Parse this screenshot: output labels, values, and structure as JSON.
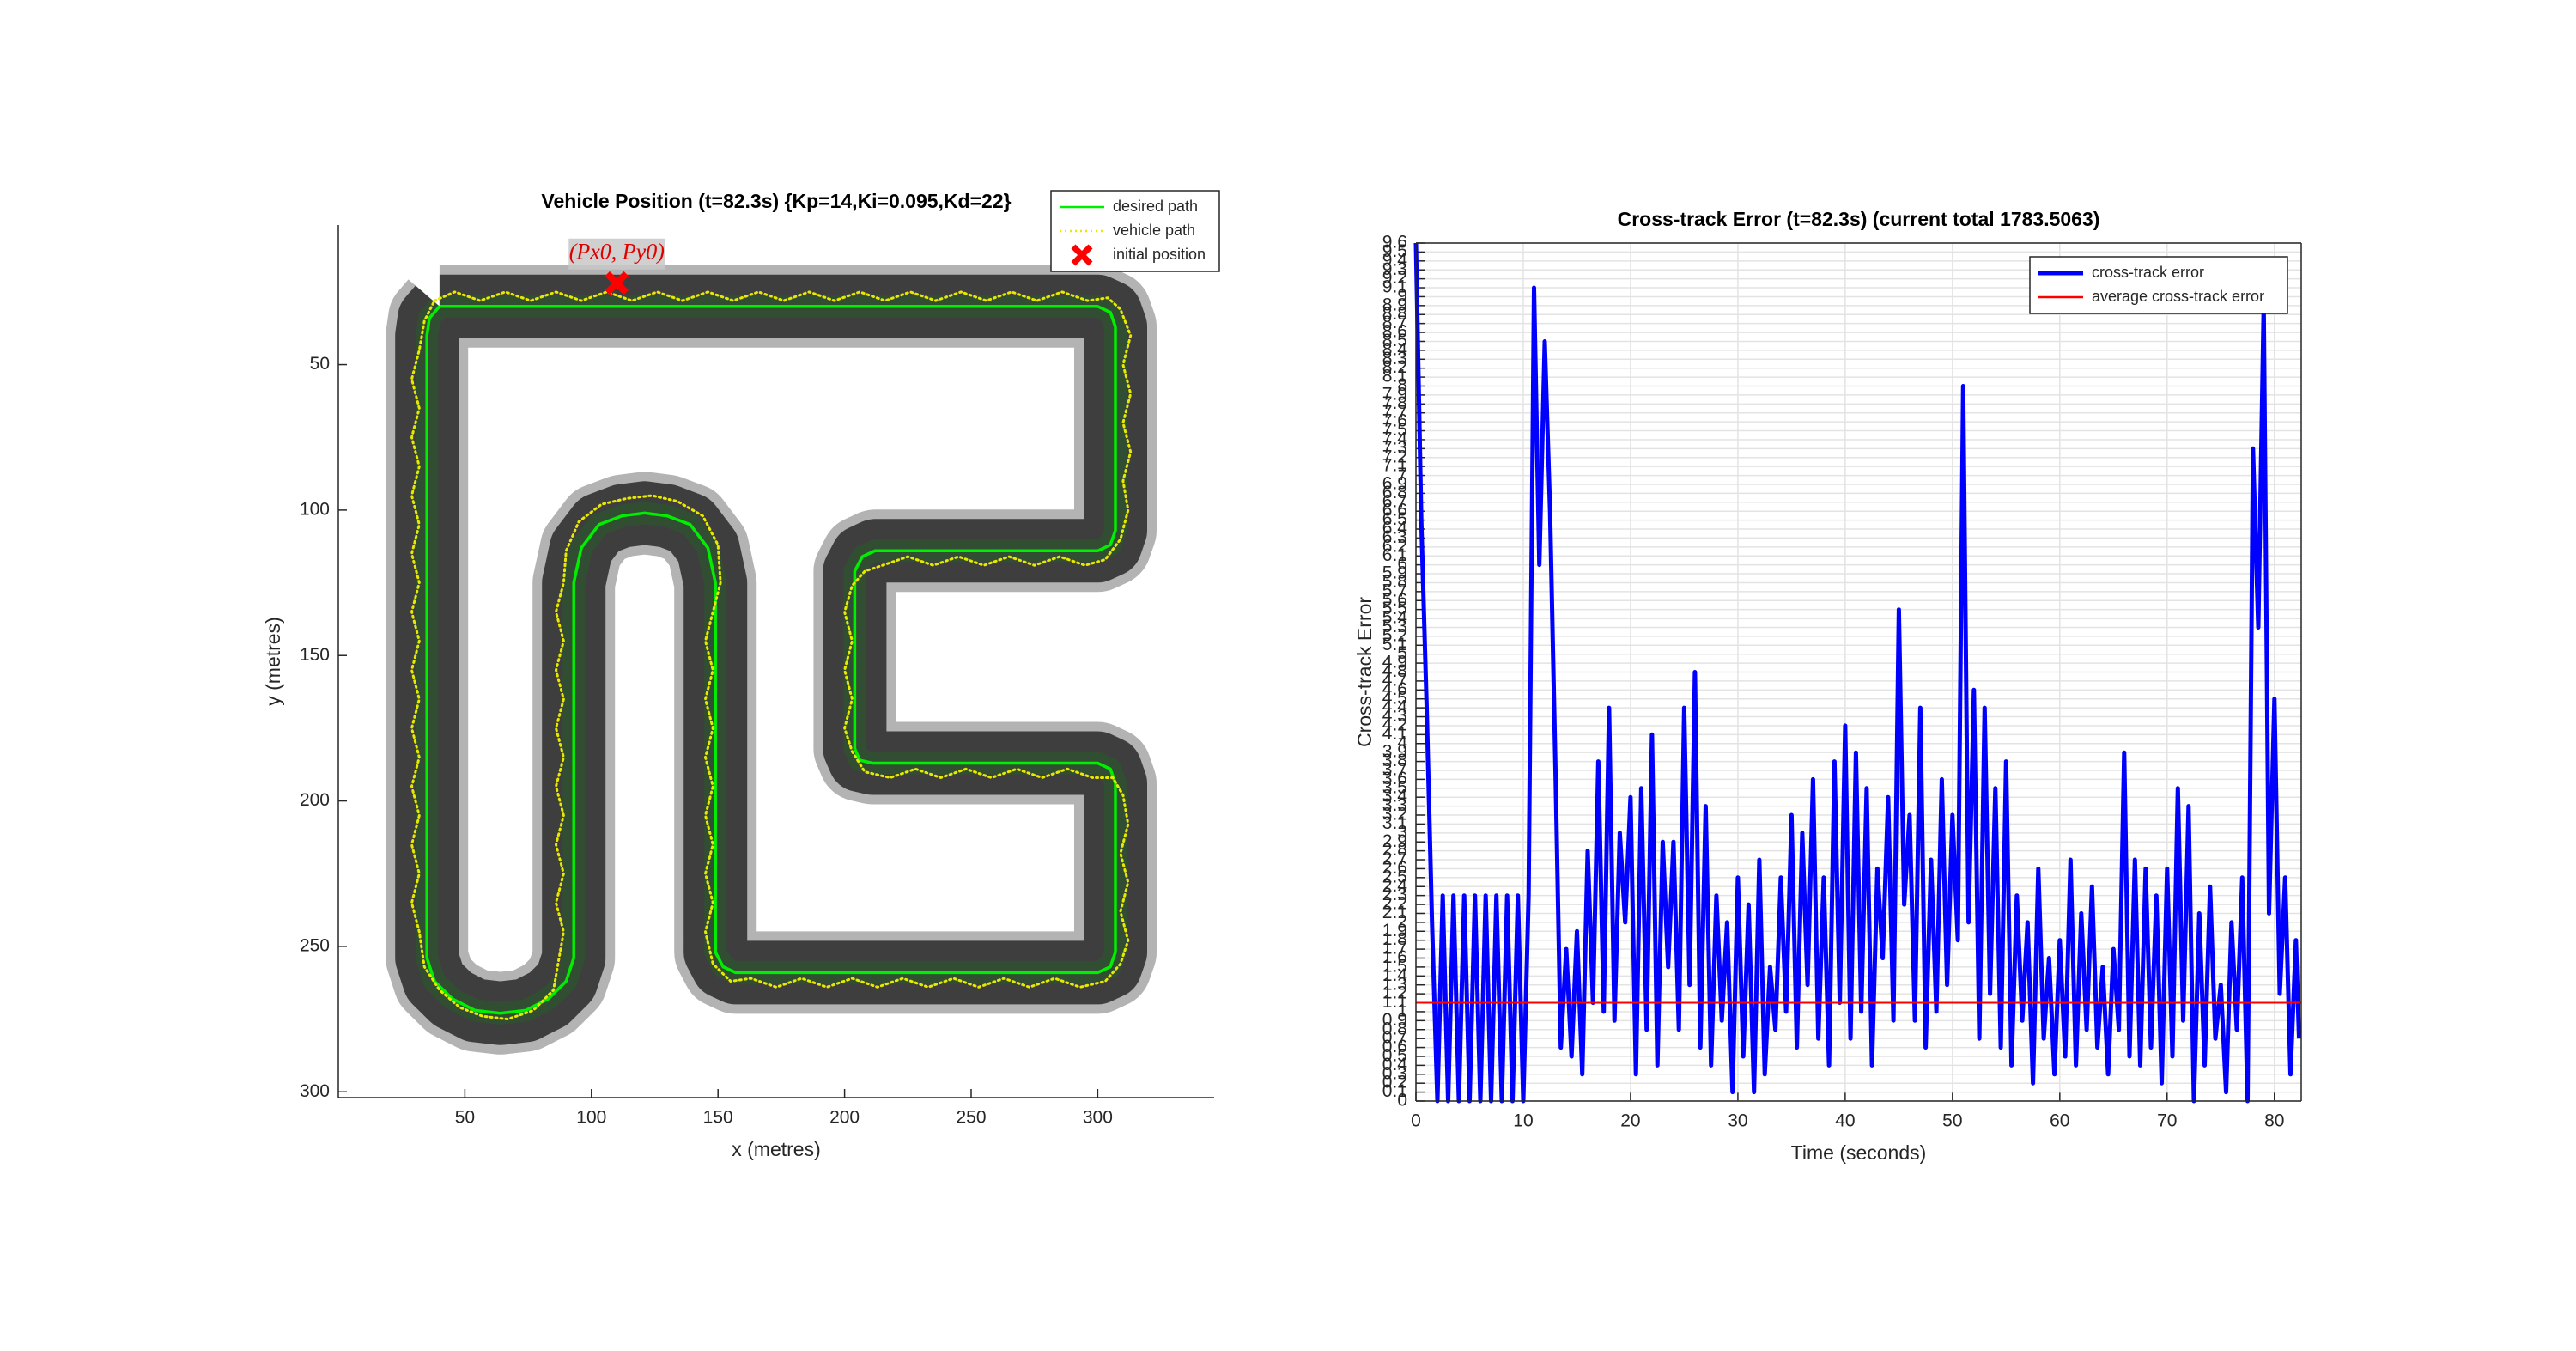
{
  "chart_data": [
    {
      "type": "path",
      "title": "Vehicle Position (t=82.3s) {Kp=14,Ki=0.095,Kd=22}",
      "xlabel": "x (metres)",
      "ylabel": "y (metres)",
      "xlim": [
        0,
        346
      ],
      "ylim": [
        2,
        302
      ],
      "y_reversed": true,
      "box": false,
      "grid": false,
      "xticks": [
        50,
        100,
        150,
        200,
        250,
        300
      ],
      "yticks": [
        50,
        100,
        150,
        200,
        250,
        300
      ],
      "legend": "northeast",
      "annotation": "(Px0, Py0)",
      "series": [
        {
          "name": "desired path",
          "color": "#00ee00",
          "style": "solid",
          "x": [
            40,
            300,
            305,
            307,
            307,
            305,
            300,
            212,
            207,
            204,
            204,
            206,
            211,
            300,
            305,
            307,
            307,
            305,
            300,
            157,
            152,
            149,
            149,
            146,
            139,
            130,
            121,
            112,
            103,
            96,
            93,
            93,
            90,
            83,
            74,
            64,
            54,
            45,
            38,
            35,
            35,
            36,
            40
          ],
          "y": [
            30,
            30,
            32,
            37,
            107,
            112,
            114,
            114,
            116,
            121,
            182,
            186,
            187,
            187,
            189,
            194,
            252,
            257,
            259,
            259,
            257,
            252,
            125,
            113,
            105,
            102,
            101,
            102,
            105,
            113,
            125,
            254,
            262,
            268,
            272,
            273,
            272,
            268,
            262,
            254,
            40,
            34,
            30
          ]
        },
        {
          "name": "vehicle path",
          "color": "#e8e800",
          "style": "dotted",
          "x": [
            38,
            46,
            56,
            66,
            76,
            86,
            96,
            106,
            116,
            126,
            136,
            146,
            156,
            166,
            176,
            186,
            196,
            206,
            216,
            226,
            236,
            246,
            256,
            266,
            276,
            286,
            296,
            304,
            309,
            313,
            310,
            313,
            310,
            313,
            310,
            312,
            309,
            303,
            295,
            285,
            275,
            265,
            255,
            245,
            235,
            225,
            215,
            208,
            203,
            200,
            203,
            200,
            203,
            200,
            203,
            208,
            218,
            228,
            238,
            248,
            258,
            268,
            278,
            288,
            298,
            306,
            310,
            312,
            309,
            312,
            309,
            312,
            309,
            303,
            293,
            283,
            273,
            263,
            253,
            243,
            233,
            223,
            213,
            203,
            193,
            183,
            173,
            163,
            155,
            148,
            145,
            148,
            145,
            148,
            145,
            148,
            145,
            148,
            145,
            148,
            145,
            148,
            151,
            150,
            144,
            134,
            124,
            114,
            104,
            95,
            90,
            89,
            86,
            89,
            86,
            89,
            86,
            89,
            86,
            89,
            86,
            89,
            86,
            89,
            87,
            85,
            77,
            67,
            57,
            48,
            40,
            34,
            32,
            29,
            32,
            29,
            32,
            29,
            32,
            29,
            32,
            29,
            32,
            29,
            32,
            29,
            32,
            29,
            32,
            29,
            32,
            29,
            32,
            34,
            38
          ],
          "y": [
            28,
            25,
            28,
            25,
            28,
            25,
            28,
            25,
            28,
            25,
            28,
            25,
            28,
            25,
            28,
            25,
            28,
            25,
            28,
            25,
            28,
            25,
            28,
            25,
            28,
            25,
            28,
            27,
            31,
            40,
            50,
            60,
            70,
            80,
            90,
            100,
            110,
            117,
            119,
            116,
            119,
            116,
            119,
            116,
            119,
            116,
            119,
            121,
            126,
            135,
            145,
            155,
            165,
            175,
            183,
            190,
            192,
            189,
            192,
            189,
            192,
            189,
            192,
            189,
            192,
            192,
            198,
            208,
            218,
            228,
            238,
            248,
            256,
            262,
            264,
            261,
            264,
            261,
            264,
            261,
            264,
            261,
            264,
            261,
            264,
            261,
            264,
            261,
            262,
            256,
            245,
            235,
            225,
            215,
            205,
            195,
            185,
            175,
            165,
            155,
            145,
            135,
            125,
            112,
            102,
            97,
            95,
            96,
            98,
            104,
            114,
            125,
            135,
            145,
            155,
            165,
            175,
            185,
            195,
            205,
            215,
            225,
            235,
            245,
            255,
            265,
            272,
            275,
            274,
            271,
            265,
            257,
            245,
            235,
            225,
            215,
            205,
            195,
            185,
            175,
            165,
            155,
            145,
            135,
            125,
            115,
            105,
            95,
            85,
            75,
            65,
            55,
            45,
            35,
            28
          ]
        },
        {
          "name": "initial position",
          "color": "#ff0000",
          "style": "marker",
          "x": [
            110
          ],
          "y": [
            22
          ]
        }
      ]
    },
    {
      "type": "line",
      "title": "Cross-track Error (t=82.3s) (current total 1783.5063)",
      "xlabel": "Time (seconds)",
      "ylabel": "Cross-track Error",
      "xlim": [
        0,
        82.5
      ],
      "ylim": [
        0,
        9.6
      ],
      "y_reversed": false,
      "box": true,
      "grid": true,
      "xticks": [
        0,
        10,
        20,
        30,
        40,
        50,
        60,
        70,
        80
      ],
      "yticks": [
        0,
        0.1,
        0.2,
        0.3,
        0.4,
        0.5,
        0.6,
        0.7,
        0.8,
        0.9,
        1,
        1.1,
        1.2,
        1.3,
        1.4,
        1.5,
        1.6,
        1.7,
        1.8,
        1.9,
        2,
        2.1,
        2.2,
        2.3,
        2.4,
        2.5,
        2.6,
        2.7,
        2.8,
        2.9,
        3,
        3.1,
        3.2,
        3.3,
        3.4,
        3.5,
        3.6,
        3.7,
        3.8,
        3.9,
        4,
        4.1,
        4.2,
        4.3,
        4.4,
        4.5,
        4.6,
        4.7,
        4.8,
        4.9,
        5,
        5.1,
        5.2,
        5.3,
        5.4,
        5.5,
        5.6,
        5.7,
        5.8,
        5.9,
        6,
        6.1,
        6.2,
        6.3,
        6.4,
        6.5,
        6.6,
        6.7,
        6.8,
        6.9,
        7,
        7.1,
        7.2,
        7.3,
        7.4,
        7.5,
        7.6,
        7.7,
        7.8,
        7.9,
        8,
        8.1,
        8.2,
        8.3,
        8.4,
        8.5,
        8.6,
        8.7,
        8.8,
        8.9,
        9,
        9.1,
        9.2,
        9.3,
        9.4,
        9.5,
        9.6
      ],
      "legend": "northeast",
      "x": [
        0,
        0.5,
        1,
        1.5,
        2,
        2.5,
        3,
        3.5,
        4,
        4.5,
        5,
        5.5,
        6,
        6.5,
        7,
        7.5,
        8,
        8.5,
        9,
        9.5,
        10,
        10.5,
        11,
        11.5,
        12,
        12.5,
        13,
        13.5,
        14,
        14.5,
        15,
        15.5,
        16,
        16.5,
        17,
        17.5,
        18,
        18.5,
        19,
        19.5,
        20,
        20.5,
        21,
        21.5,
        22,
        22.5,
        23,
        23.5,
        24,
        24.5,
        25,
        25.5,
        26,
        26.5,
        27,
        27.5,
        28,
        28.5,
        29,
        29.5,
        30,
        30.5,
        31,
        31.5,
        32,
        32.5,
        33,
        33.5,
        34,
        34.5,
        35,
        35.5,
        36,
        36.5,
        37,
        37.5,
        38,
        38.5,
        39,
        39.5,
        40,
        40.5,
        41,
        41.5,
        42,
        42.5,
        43,
        43.5,
        44,
        44.5,
        45,
        45.5,
        46,
        46.5,
        47,
        47.5,
        48,
        48.5,
        49,
        49.5,
        50,
        50.5,
        51,
        51.5,
        52,
        52.5,
        53,
        53.5,
        54,
        54.5,
        55,
        55.5,
        56,
        56.5,
        57,
        57.5,
        58,
        58.5,
        59,
        59.5,
        60,
        60.5,
        61,
        61.5,
        62,
        62.5,
        63,
        63.5,
        64,
        64.5,
        65,
        65.5,
        66,
        66.5,
        67,
        67.5,
        68,
        68.5,
        69,
        69.5,
        70,
        70.5,
        71,
        71.5,
        72,
        72.5,
        73,
        73.5,
        74,
        74.5,
        75,
        75.5,
        76,
        76.5,
        77,
        77.5,
        78,
        78.5,
        79,
        79.5,
        80,
        80.5,
        81,
        81.5,
        82,
        82.3
      ],
      "series": [
        {
          "name": "cross-track error",
          "color": "#0000ff",
          "values": [
            9.6,
            6.5,
            4.4,
            2.0,
            0,
            2.3,
            0,
            2.3,
            0,
            2.3,
            0,
            2.3,
            0,
            2.3,
            0,
            2.3,
            0,
            2.3,
            0,
            2.3,
            0,
            2.3,
            9.1,
            6.0,
            8.5,
            6.6,
            3.7,
            0.6,
            1.7,
            0.5,
            1.9,
            0.3,
            2.8,
            1.1,
            3.8,
            1.0,
            4.4,
            0.9,
            3.0,
            2.0,
            3.4,
            0.3,
            3.5,
            0.8,
            4.1,
            0.4,
            2.9,
            1.5,
            2.9,
            0.8,
            4.4,
            1.3,
            4.8,
            0.6,
            3.3,
            0.4,
            2.3,
            0.9,
            2.0,
            0.1,
            2.5,
            0.5,
            2.2,
            0.1,
            2.7,
            0.3,
            1.5,
            0.8,
            2.5,
            1.0,
            3.2,
            0.6,
            3.0,
            1.3,
            3.6,
            0.7,
            2.5,
            0.4,
            3.8,
            1.1,
            4.2,
            0.7,
            3.9,
            1.0,
            3.5,
            0.4,
            2.6,
            1.6,
            3.4,
            0.9,
            5.5,
            2.2,
            3.2,
            0.9,
            4.4,
            0.6,
            2.7,
            1.0,
            3.6,
            1.3,
            3.2,
            1.8,
            8.0,
            2.0,
            4.6,
            0.7,
            4.4,
            1.2,
            3.5,
            0.6,
            3.8,
            0.4,
            2.3,
            0.9,
            2.0,
            0.2,
            2.6,
            0.7,
            1.6,
            0.3,
            1.8,
            0.5,
            2.7,
            0.4,
            2.1,
            0.8,
            2.4,
            0.6,
            1.5,
            0.3,
            1.7,
            0.8,
            3.9,
            0.5,
            2.7,
            0.4,
            2.6,
            0.6,
            2.3,
            0.2,
            2.6,
            0.5,
            3.5,
            0.9,
            3.3,
            0.0,
            2.1,
            0.4,
            2.4,
            0.7,
            1.3,
            0.1,
            2.0,
            0.8,
            2.5,
            0.0,
            7.3,
            5.3,
            8.9,
            2.1,
            4.5,
            1.2,
            2.5,
            0.3,
            1.8,
            0.7
          ]
        }
      ],
      "average": {
        "name": "average cross-track error",
        "color": "#ff0000",
        "value": 1.1
      }
    }
  ]
}
